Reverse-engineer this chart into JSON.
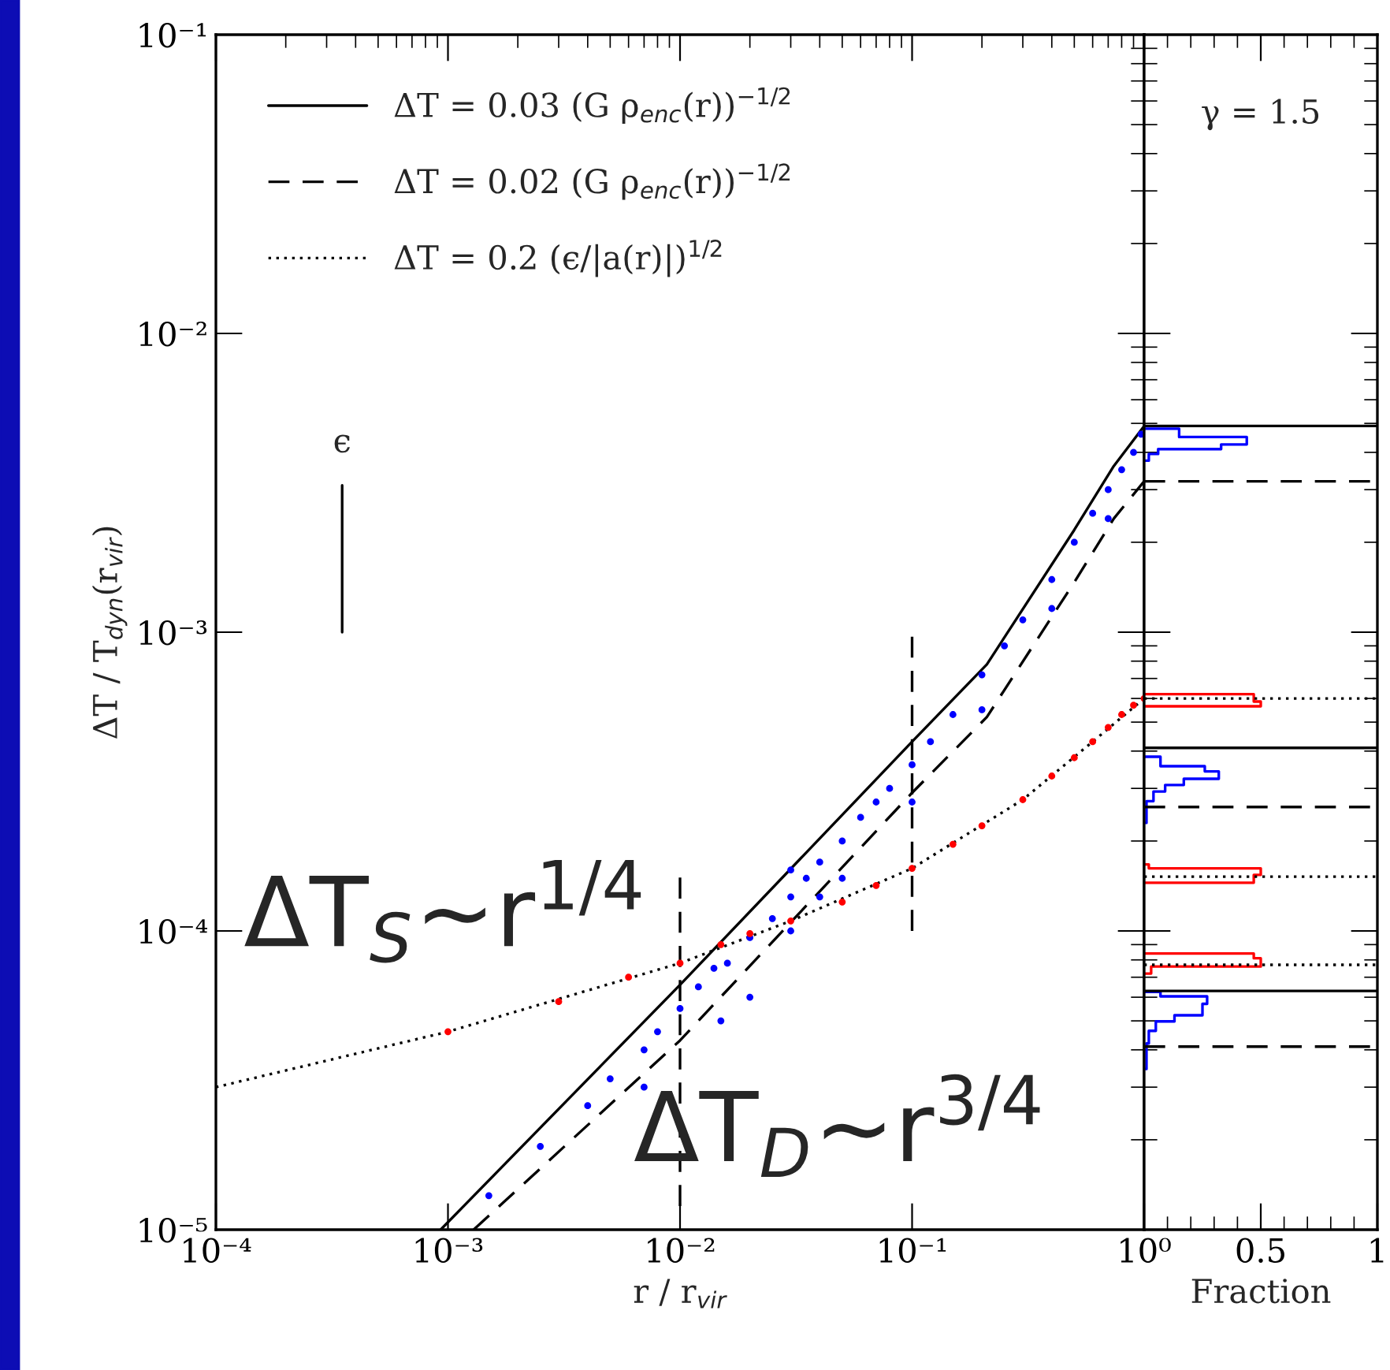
{
  "chart_data": [
    {
      "type": "line",
      "xlabel": "r / r$_{vir}$",
      "ylabel": "ΔT / T$_{dyn}$(r$_{vir}$)",
      "log": "xy",
      "legend": "top left",
      "grid": false,
      "xlim": [
        0.0001,
        1
      ],
      "ylim": [
        1e-05,
        0.1
      ],
      "xticks": [
        {
          "value": 0.0001,
          "label": "10⁻⁴"
        },
        {
          "value": 0.001,
          "label": "10⁻³"
        },
        {
          "value": 0.01,
          "label": "10⁻²"
        },
        {
          "value": 0.1,
          "label": "10⁻¹"
        },
        {
          "value": 1,
          "label": "10⁰"
        }
      ],
      "yticks": [
        {
          "value": 1e-05,
          "label": "10⁻⁵"
        },
        {
          "value": 0.0001,
          "label": "10⁻⁴"
        },
        {
          "value": 0.001,
          "label": "10⁻³"
        },
        {
          "value": 0.01,
          "label": "10⁻²"
        },
        {
          "value": 0.1,
          "label": "10⁻¹"
        }
      ],
      "series": [
        {
          "type": "line",
          "name": "ΔT = 0.03 (G ρ$_{enc}$(r))$^{−1/2}$",
          "color": "#000000",
          "line_style": "solid",
          "x": [
            0.00093,
            0.01,
            0.1,
            0.21,
            0.5,
            0.74,
            1
          ],
          "values": [
            1e-05,
            6.6e-05,
            0.00043,
            0.00078,
            0.0022,
            0.0036,
            0.0049
          ]
        },
        {
          "type": "line",
          "name": "ΔT = 0.02 (G ρ$_{enc}$(r))$^{−1/2}$",
          "color": "#000000",
          "line_style": "dashed",
          "x": [
            0.00129,
            0.01,
            0.1,
            0.21,
            0.5,
            0.74,
            1
          ],
          "values": [
            1e-05,
            4.3e-05,
            0.00029,
            0.00052,
            0.00147,
            0.0024,
            0.0032
          ]
        },
        {
          "type": "line",
          "name": "ΔT = 0.2 (ϵ/|a(r)|)$^{1/2}$",
          "color": "#000000",
          "line_style": "dotted",
          "x": [
            0.0001,
            0.001,
            0.01,
            0.03,
            0.1,
            0.3,
            0.6,
            1
          ],
          "values": [
            3e-05,
            4.6e-05,
            7.8e-05,
            0.000108,
            0.000162,
            0.000275,
            0.00043,
            0.0006
          ]
        },
        {
          "type": "scatter",
          "color": "#0000ff",
          "x": [
            0.0015,
            0.0025,
            0.004,
            0.005,
            0.007,
            0.008,
            0.01,
            0.012,
            0.014,
            0.016,
            0.02,
            0.025,
            0.03,
            0.035,
            0.04,
            0.05,
            0.06,
            0.07,
            0.08,
            0.1,
            0.12,
            0.15,
            0.2,
            0.25,
            0.3,
            0.4,
            0.5,
            0.6,
            0.7,
            0.8,
            0.9,
            0.97,
            0.05,
            0.1,
            0.2,
            0.4,
            0.7,
            0.03,
            0.015,
            0.02,
            0.007,
            0.04,
            0.03
          ],
          "values": [
            1.3e-05,
            1.9e-05,
            2.6e-05,
            3.2e-05,
            4e-05,
            4.6e-05,
            5.5e-05,
            6.5e-05,
            7.5e-05,
            7.8e-05,
            9.5e-05,
            0.00011,
            0.00013,
            0.00015,
            0.00017,
            0.0002,
            0.00024,
            0.00027,
            0.0003,
            0.00036,
            0.00043,
            0.00053,
            0.00072,
            0.0009,
            0.0011,
            0.0015,
            0.002,
            0.0025,
            0.003,
            0.0035,
            0.004,
            0.0046,
            0.00015,
            0.00027,
            0.00055,
            0.0012,
            0.0024,
            0.0001,
            5e-05,
            6e-05,
            3e-05,
            0.00013,
            0.00016
          ]
        },
        {
          "type": "scatter",
          "color": "#ff0000",
          "x": [
            0.001,
            0.003,
            0.006,
            0.01,
            0.015,
            0.02,
            0.03,
            0.05,
            0.07,
            0.1,
            0.15,
            0.2,
            0.3,
            0.4,
            0.5,
            0.6,
            0.7,
            0.8,
            0.9,
            1.0
          ],
          "values": [
            4.6e-05,
            5.8e-05,
            7e-05,
            7.8e-05,
            9e-05,
            9.8e-05,
            0.000108,
            0.000125,
            0.000142,
            0.000162,
            0.000195,
            0.000225,
            0.000275,
            0.00033,
            0.00038,
            0.00043,
            0.00048,
            0.00053,
            0.00057,
            0.0006
          ]
        },
        {
          "type": "line",
          "color": "#000000",
          "line_style": "dashed",
          "x": [
            0.01,
            0.01
          ],
          "values": [
            1.2e-05,
            0.000155
          ]
        },
        {
          "type": "line",
          "color": "#000000",
          "line_style": "dashed",
          "x": [
            0.1,
            0.1
          ],
          "values": [
            0.0001,
            0.001
          ]
        },
        {
          "type": "line",
          "color": "#000000",
          "line_style": "solid",
          "x": [
            0.00035,
            0.00035
          ],
          "values": [
            0.001,
            0.0031
          ]
        }
      ],
      "annotations": [
        "ΔT$_{S}$~r$^{1/4}$",
        "ΔT$_{D}$~r$^{3/4}$",
        {
          "text": "ϵ",
          "x": 0.00035,
          "y": 0.0031
        }
      ]
    },
    {
      "type": "line",
      "xlabel": "Fraction",
      "log": "y",
      "grid": false,
      "tick_labels": "x",
      "xlim": [
        0,
        1
      ],
      "xticks": [
        {
          "value": 0,
          "label": null
        },
        0.5,
        1
      ],
      "ylim": [
        1e-05,
        0.1
      ],
      "yticks": [
        1e-05,
        0.0001,
        0.001,
        0.01,
        0.1
      ],
      "series": [
        {
          "color": "#0000ff",
          "line_style": "solid",
          "x": [
            0,
            0.02,
            0.02,
            0.06,
            0.06,
            0.33,
            0.33,
            0.44,
            0.44,
            0.15,
            0.15,
            0
          ],
          "values": [
            0.00375,
            0.00375,
            0.00395,
            0.00395,
            0.0041,
            0.0041,
            0.00425,
            0.00425,
            0.0045,
            0.0045,
            0.0048,
            0.0048
          ]
        },
        {
          "color": "#ff0000",
          "line_style": "solid",
          "x": [
            0,
            0.5,
            0.5,
            0.47,
            0.47,
            0
          ],
          "values": [
            0.000565,
            0.000565,
            0.000586,
            0.000586,
            0.00062,
            0.00062
          ]
        },
        {
          "color": "#0000ff",
          "line_style": "solid",
          "x": [
            0,
            0.01,
            0.01,
            0.04,
            0.04,
            0.09,
            0.09,
            0.17,
            0.17,
            0.32,
            0.32,
            0.26,
            0.26,
            0.07,
            0.07,
            0
          ],
          "values": [
            0.00023,
            0.00023,
            0.000272,
            0.000272,
            0.000293,
            0.000293,
            0.000308,
            0.000308,
            0.000323,
            0.000323,
            0.000342,
            0.000342,
            0.000356,
            0.000356,
            0.000383,
            0.000383
          ]
        },
        {
          "color": "#ff0000",
          "line_style": "solid",
          "x": [
            0,
            0.47,
            0.47,
            0.5,
            0.5,
            0.02,
            0.02,
            0
          ],
          "values": [
            0.000145,
            0.000145,
            0.000154,
            0.000154,
            0.000162,
            0.000162,
            0.000167,
            0.000167
          ]
        },
        {
          "color": "#ff0000",
          "line_style": "solid",
          "x": [
            0,
            0.03,
            0.03,
            0.5,
            0.5,
            0.47,
            0.47,
            0
          ],
          "values": [
            7.2e-05,
            7.2e-05,
            7.6e-05,
            7.6e-05,
            8.1e-05,
            8.1e-05,
            8.4e-05,
            8.4e-05
          ]
        },
        {
          "color": "#0000ff",
          "line_style": "solid",
          "x": [
            0,
            0.01,
            0.01,
            0.02,
            0.02,
            0.05,
            0.05,
            0.13,
            0.13,
            0.25,
            0.25,
            0.27,
            0.27,
            0.07,
            0.07,
            0
          ],
          "values": [
            3.45e-05,
            3.45e-05,
            4.2e-05,
            4.2e-05,
            4.63e-05,
            4.63e-05,
            4.98e-05,
            4.98e-05,
            5.22e-05,
            5.22e-05,
            5.7e-05,
            5.7e-05,
            6.04e-05,
            6.04e-05,
            6.25e-05,
            6.25e-05
          ]
        }
      ],
      "ref_lines": [
        {
          "axis": "y",
          "value": 0.0049,
          "color": "#000000",
          "line_style": "solid"
        },
        {
          "axis": "y",
          "value": 0.0032,
          "color": "#000000",
          "line_style": "dashed"
        },
        {
          "axis": "y",
          "value": 0.0006,
          "color": "#000000",
          "line_style": "dotted"
        },
        {
          "axis": "y",
          "value": 0.00041,
          "color": "#000000",
          "line_style": "solid"
        },
        {
          "axis": "y",
          "value": 0.00026,
          "color": "#000000",
          "line_style": "dashed"
        },
        {
          "axis": "y",
          "value": 0.000152,
          "color": "#000000",
          "line_style": "dotted"
        },
        {
          "axis": "y",
          "value": 7.7e-05,
          "color": "#000000",
          "line_style": "dotted"
        },
        {
          "axis": "y",
          "value": 6.3e-05,
          "color": "#000000",
          "line_style": "solid"
        },
        {
          "axis": "y",
          "value": 4.1e-05,
          "color": "#000000",
          "line_style": "dashed"
        }
      ],
      "annotations": [
        "γ = 1.5"
      ]
    }
  ]
}
